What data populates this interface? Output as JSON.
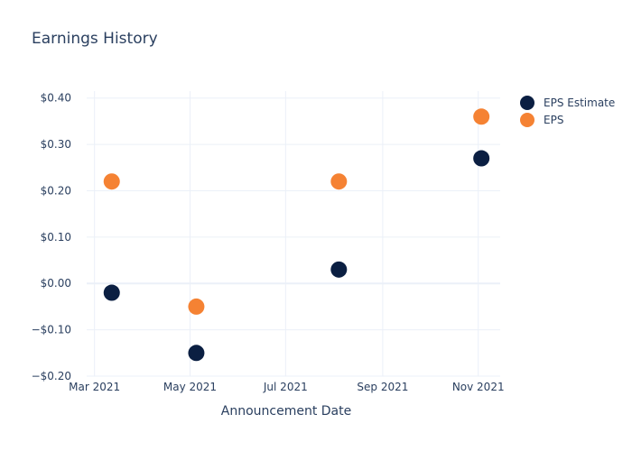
{
  "chart_data": {
    "type": "scatter",
    "title": "Earnings History",
    "xlabel": "Announcement Date",
    "ylabel": "",
    "x_axis_type": "date",
    "xlim": [
      "2021-02-24",
      "2021-11-15"
    ],
    "ylim": [
      -0.2,
      0.415
    ],
    "x_ticks": [
      {
        "value": "2021-03-01",
        "label": "Mar 2021"
      },
      {
        "value": "2021-05-01",
        "label": "May 2021"
      },
      {
        "value": "2021-07-01",
        "label": "Jul 2021"
      },
      {
        "value": "2021-09-01",
        "label": "Sep 2021"
      },
      {
        "value": "2021-11-01",
        "label": "Nov 2021"
      }
    ],
    "y_ticks": [
      {
        "value": 0.4,
        "label": "$0.40"
      },
      {
        "value": 0.3,
        "label": "$0.30"
      },
      {
        "value": 0.2,
        "label": "$0.20"
      },
      {
        "value": 0.1,
        "label": "$0.10"
      },
      {
        "value": 0.0,
        "label": "$0.00"
      },
      {
        "value": -0.1,
        "label": "−$0.10"
      },
      {
        "value": -0.2,
        "label": "−$0.20"
      }
    ],
    "grid": true,
    "legend_position": "top-right",
    "series": [
      {
        "name": "EPS Estimate",
        "color": "#0b1f42",
        "points": [
          {
            "x": "2021-03-12",
            "y": -0.02
          },
          {
            "x": "2021-05-05",
            "y": -0.15
          },
          {
            "x": "2021-08-04",
            "y": 0.03
          },
          {
            "x": "2021-11-03",
            "y": 0.27
          }
        ]
      },
      {
        "name": "EPS",
        "color": "#f58233",
        "points": [
          {
            "x": "2021-03-12",
            "y": 0.22
          },
          {
            "x": "2021-05-05",
            "y": -0.05
          },
          {
            "x": "2021-08-04",
            "y": 0.22
          },
          {
            "x": "2021-11-03",
            "y": 0.36
          }
        ]
      }
    ]
  }
}
